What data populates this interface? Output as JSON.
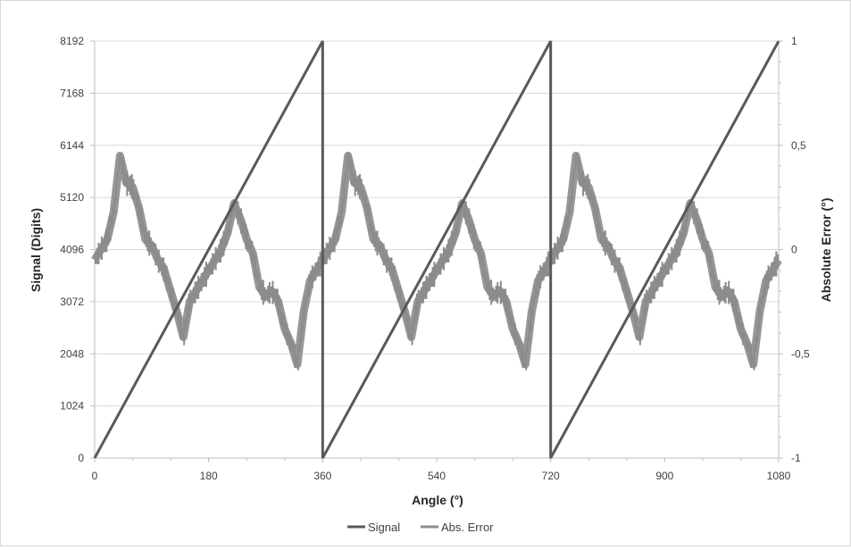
{
  "chart_data": {
    "type": "line",
    "title": "",
    "xlabel": "Angle (°)",
    "ylabel": "Signal (Digits)",
    "y2label": "Absolute Error (°)",
    "xlim": [
      0,
      1080
    ],
    "ylim": [
      0,
      8192
    ],
    "y2lim": [
      -1,
      1
    ],
    "x_ticks": [
      "0",
      "180",
      "360",
      "540",
      "720",
      "900",
      "1080"
    ],
    "y_ticks": [
      "0",
      "1024",
      "2048",
      "3072",
      "4096",
      "5120",
      "6144",
      "7168",
      "8192"
    ],
    "y2_ticks": [
      "-1",
      "-0,5",
      "0",
      "0,5",
      "1"
    ],
    "grid": "horizontal",
    "legend_position": "bottom",
    "series": [
      {
        "name": "Signal",
        "axis": "left",
        "color": "#595959",
        "x": [
          0,
          360,
          360,
          720,
          720,
          1080
        ],
        "y": [
          0,
          8192,
          0,
          8192,
          0,
          8192
        ]
      },
      {
        "name": "Abs. Error",
        "axis": "right",
        "color": "#8c8c8c",
        "period": 360,
        "x": [
          0,
          10,
          20,
          30,
          40,
          50,
          60,
          70,
          80,
          90,
          100,
          110,
          120,
          130,
          140,
          150,
          160,
          170,
          180,
          190,
          200,
          210,
          220,
          230,
          240,
          250,
          260,
          270,
          280,
          290,
          300,
          310,
          320,
          330,
          340,
          350,
          360,
          370,
          380,
          390,
          400,
          410,
          420,
          430,
          440,
          450,
          460,
          470,
          480,
          490,
          500,
          510,
          520,
          530,
          540,
          550,
          560,
          570,
          580,
          590,
          600,
          610,
          620,
          630,
          640,
          650,
          660,
          670,
          680,
          690,
          700,
          710,
          720,
          730,
          740,
          750,
          760,
          770,
          780,
          790,
          800,
          810,
          820,
          830,
          840,
          850,
          860,
          870,
          880,
          890,
          900,
          910,
          920,
          930,
          940,
          950,
          960,
          970,
          980,
          990,
          1000,
          1010,
          1020,
          1030,
          1040,
          1050,
          1060,
          1070,
          1080
        ],
        "y": [
          -0.05,
          0.0,
          0.05,
          0.18,
          0.45,
          0.32,
          0.3,
          0.2,
          0.05,
          0.02,
          -0.05,
          -0.1,
          -0.2,
          -0.3,
          -0.42,
          -0.25,
          -0.2,
          -0.15,
          -0.1,
          -0.05,
          0.0,
          0.08,
          0.22,
          0.15,
          0.05,
          -0.02,
          -0.18,
          -0.22,
          -0.2,
          -0.25,
          -0.38,
          -0.45,
          -0.55,
          -0.3,
          -0.15,
          -0.1,
          -0.05,
          0.0,
          0.05,
          0.18,
          0.45,
          0.32,
          0.3,
          0.2,
          0.05,
          0.02,
          -0.05,
          -0.1,
          -0.2,
          -0.3,
          -0.42,
          -0.25,
          -0.2,
          -0.15,
          -0.1,
          -0.05,
          0.0,
          0.08,
          0.22,
          0.15,
          0.05,
          -0.02,
          -0.18,
          -0.22,
          -0.2,
          -0.25,
          -0.38,
          -0.45,
          -0.55,
          -0.3,
          -0.15,
          -0.1,
          -0.05,
          0.0,
          0.05,
          0.18,
          0.45,
          0.32,
          0.3,
          0.2,
          0.05,
          0.02,
          -0.05,
          -0.1,
          -0.2,
          -0.3,
          -0.42,
          -0.25,
          -0.2,
          -0.15,
          -0.1,
          -0.05,
          0.0,
          0.08,
          0.22,
          0.15,
          0.05,
          -0.02,
          -0.18,
          -0.22,
          -0.2,
          -0.25,
          -0.38,
          -0.45,
          -0.55,
          -0.3,
          -0.15,
          -0.1,
          -0.05
        ]
      }
    ]
  }
}
